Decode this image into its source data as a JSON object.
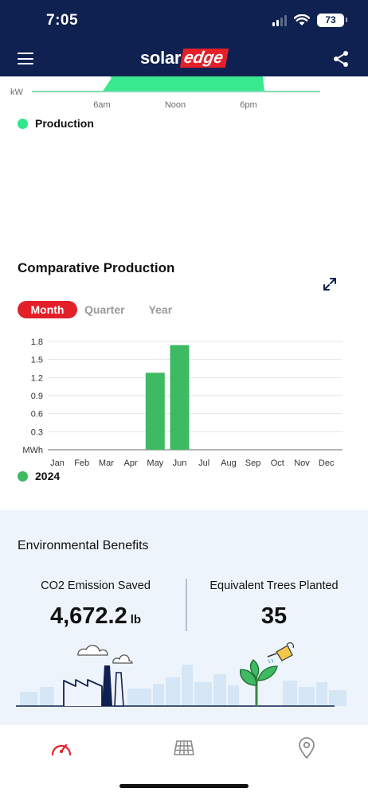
{
  "status_bar": {
    "time": "7:05",
    "battery": "73"
  },
  "header": {
    "logo_part1": "solar",
    "logo_part2": "edge"
  },
  "production_chart": {
    "y_unit": "kW",
    "x_ticks": [
      "6am",
      "Noon",
      "6pm"
    ],
    "legend": "Production",
    "color": "#2ee88a"
  },
  "comparative": {
    "title": "Comparative Production",
    "tabs": [
      "Month",
      "Quarter",
      "Year"
    ],
    "active_tab": "Month",
    "accent": "#e3202a"
  },
  "chart_data": {
    "type": "bar",
    "categories": [
      "Jan",
      "Feb",
      "Mar",
      "Apr",
      "May",
      "Jun",
      "Jul",
      "Aug",
      "Sep",
      "Oct",
      "Nov",
      "Dec"
    ],
    "series": [
      {
        "name": "2024",
        "values": [
          0,
          0,
          0,
          0,
          1.28,
          1.74,
          0,
          0,
          0,
          0,
          0,
          0
        ],
        "color": "#3dba62"
      }
    ],
    "y_ticks": [
      "1.8",
      "1.5",
      "1.2",
      "0.9",
      "0.6",
      "0.3",
      "MWh"
    ],
    "ylim": [
      0,
      1.8
    ],
    "ylabel": "MWh",
    "grid": true,
    "legend": "bottom-left"
  },
  "environment": {
    "title": "Environmental Benefits",
    "co2_label": "CO2 Emission Saved",
    "co2_value": "4,672.2",
    "co2_unit": "lb",
    "trees_label": "Equivalent Trees Planted",
    "trees_value": "35"
  },
  "tabbar": {
    "items": [
      "dashboard-icon",
      "layout-icon",
      "location-pin-icon"
    ],
    "active_color": "#e3202a"
  }
}
